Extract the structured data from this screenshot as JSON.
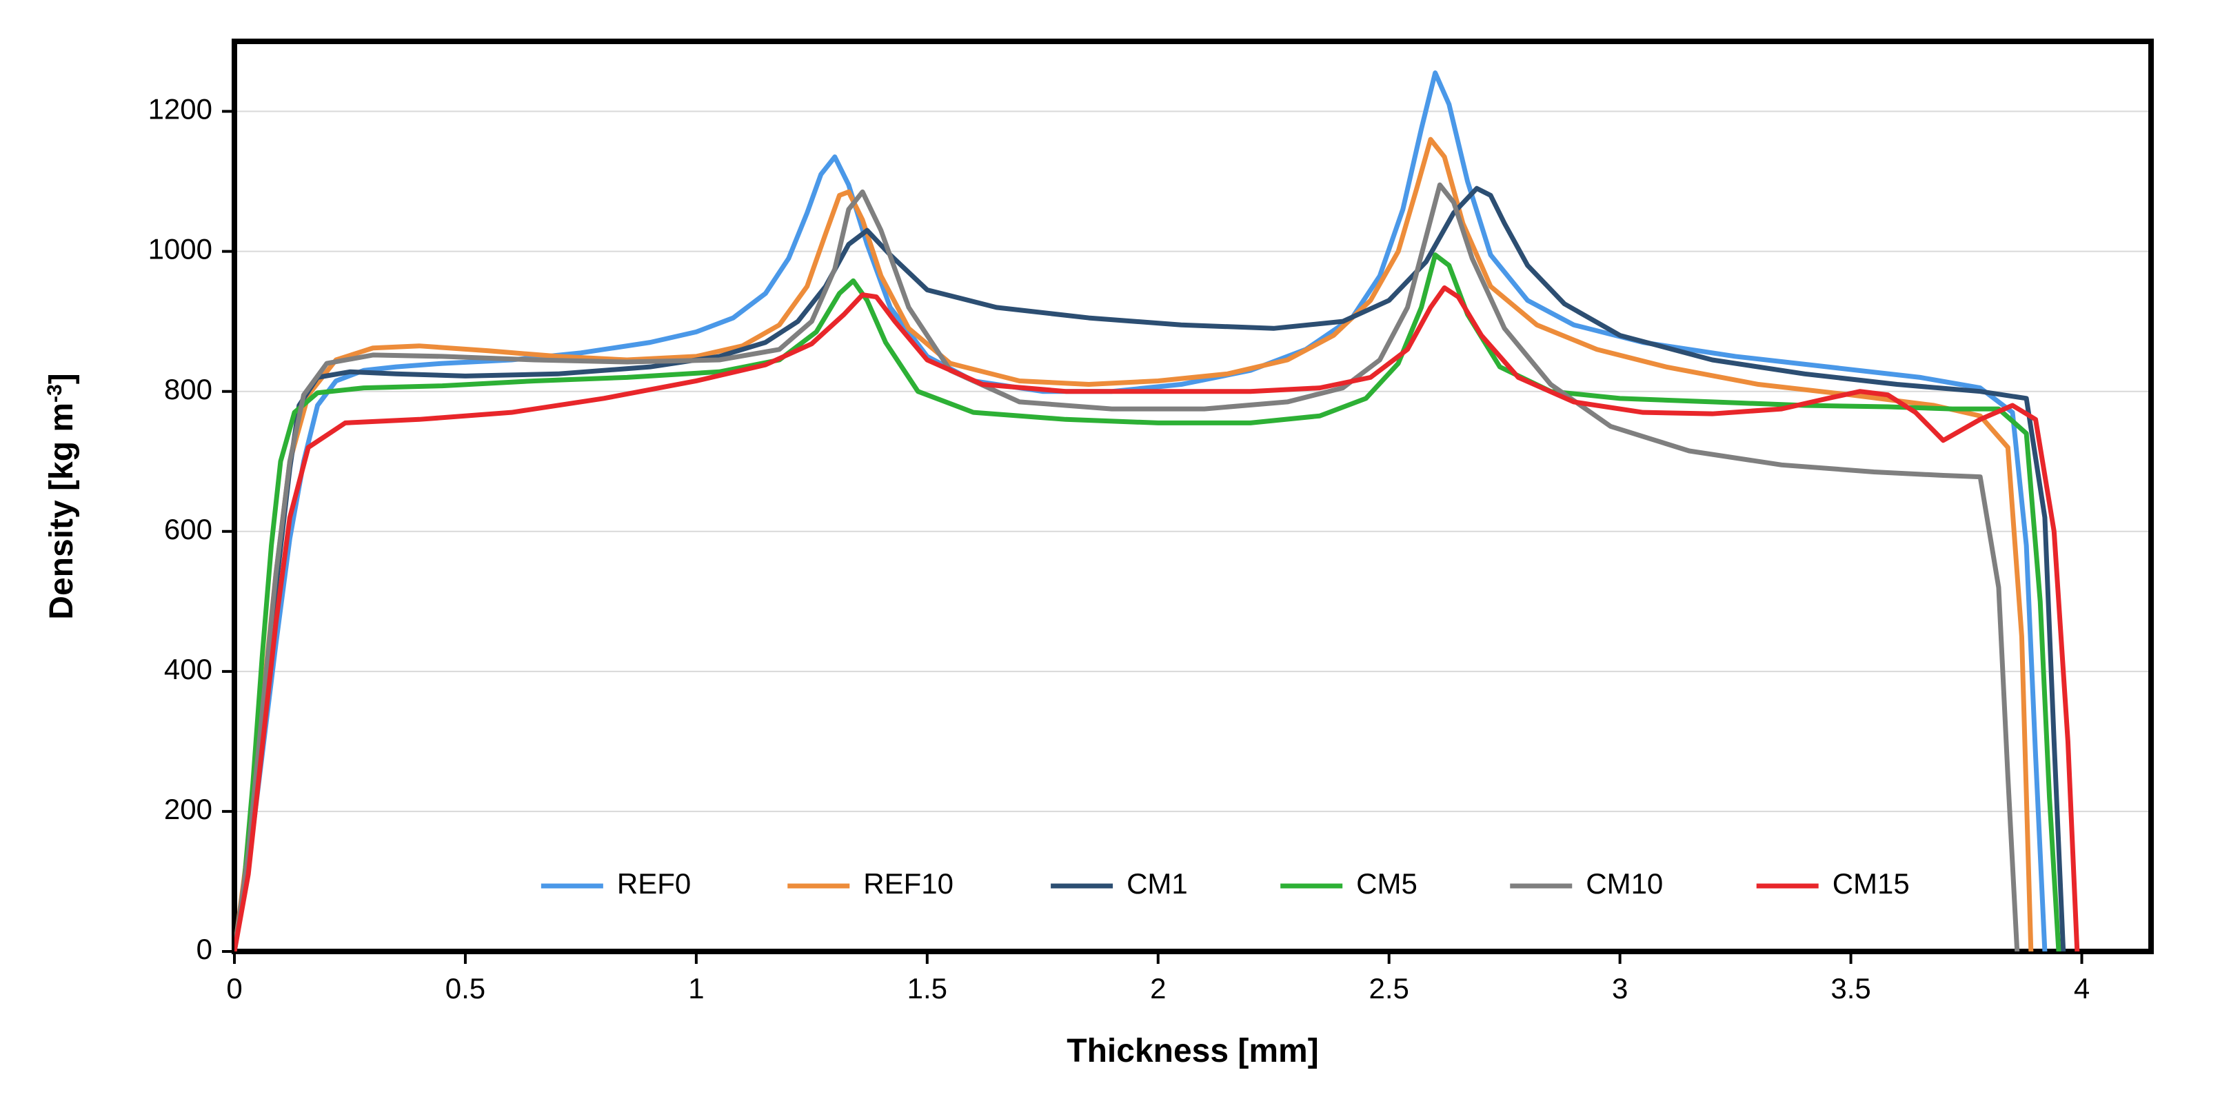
{
  "chart": {
    "type": "line",
    "background_color": "#ffffff",
    "plot_border_color": "#000000",
    "plot_border_width": 8,
    "gridline_color": "#d9d9d9",
    "gridline_width": 2,
    "axis_label_fontsize": 48,
    "tick_label_fontsize": 42,
    "legend_fontsize": 42,
    "line_width": 7,
    "x_axis": {
      "label": "Thickness [mm]",
      "min": 0,
      "max": 4.15,
      "tick_step": 0.5,
      "ticks": [
        0,
        0.5,
        1,
        1.5,
        2,
        2.5,
        3,
        3.5,
        4
      ]
    },
    "y_axis": {
      "label": "Density [kg m⁻³]",
      "min": 0,
      "max": 1300,
      "tick_step": 200,
      "ticks": [
        0,
        200,
        400,
        600,
        800,
        1000,
        1200
      ],
      "grid": true
    },
    "legend": {
      "position": "bottom-inside",
      "line_length": 90,
      "gap": 150
    },
    "series": [
      {
        "name": "REF0",
        "color": "#4a98e8",
        "x": [
          0,
          0.03,
          0.06,
          0.09,
          0.12,
          0.15,
          0.18,
          0.22,
          0.28,
          0.35,
          0.45,
          0.6,
          0.75,
          0.9,
          1.0,
          1.08,
          1.15,
          1.2,
          1.24,
          1.27,
          1.3,
          1.33,
          1.37,
          1.42,
          1.5,
          1.6,
          1.75,
          1.9,
          2.05,
          2.2,
          2.32,
          2.42,
          2.48,
          2.53,
          2.57,
          2.6,
          2.63,
          2.67,
          2.72,
          2.8,
          2.9,
          3.05,
          3.25,
          3.45,
          3.65,
          3.78,
          3.85,
          3.88,
          3.9,
          3.92
        ],
        "y": [
          0,
          120,
          280,
          440,
          590,
          700,
          780,
          815,
          830,
          835,
          840,
          845,
          855,
          870,
          885,
          905,
          940,
          990,
          1055,
          1110,
          1135,
          1095,
          1010,
          920,
          850,
          815,
          800,
          800,
          810,
          830,
          860,
          905,
          965,
          1060,
          1175,
          1255,
          1210,
          1100,
          995,
          930,
          895,
          870,
          850,
          835,
          820,
          805,
          770,
          580,
          280,
          0
        ]
      },
      {
        "name": "REF10",
        "color": "#ed8c3a",
        "x": [
          0,
          0.03,
          0.06,
          0.09,
          0.12,
          0.16,
          0.22,
          0.3,
          0.4,
          0.55,
          0.7,
          0.85,
          1.0,
          1.1,
          1.18,
          1.24,
          1.28,
          1.31,
          1.33,
          1.36,
          1.4,
          1.46,
          1.55,
          1.7,
          1.85,
          2.0,
          2.15,
          2.28,
          2.38,
          2.46,
          2.52,
          2.56,
          2.59,
          2.62,
          2.66,
          2.72,
          2.82,
          2.95,
          3.1,
          3.3,
          3.5,
          3.68,
          3.78,
          3.84,
          3.87,
          3.89
        ],
        "y": [
          0,
          150,
          350,
          540,
          700,
          795,
          845,
          862,
          865,
          858,
          850,
          845,
          850,
          865,
          895,
          950,
          1025,
          1080,
          1085,
          1045,
          965,
          890,
          840,
          815,
          810,
          815,
          825,
          845,
          880,
          930,
          1000,
          1090,
          1160,
          1135,
          1040,
          950,
          895,
          860,
          835,
          810,
          795,
          780,
          765,
          720,
          450,
          0
        ]
      },
      {
        "name": "CM1",
        "color": "#2c4e72",
        "x": [
          0,
          0.03,
          0.06,
          0.09,
          0.12,
          0.14,
          0.18,
          0.25,
          0.35,
          0.5,
          0.7,
          0.9,
          1.05,
          1.15,
          1.22,
          1.28,
          1.33,
          1.37,
          1.42,
          1.5,
          1.65,
          1.85,
          2.05,
          2.25,
          2.4,
          2.5,
          2.58,
          2.64,
          2.69,
          2.72,
          2.75,
          2.8,
          2.88,
          3.0,
          3.2,
          3.4,
          3.6,
          3.78,
          3.88,
          3.92,
          3.94,
          3.96
        ],
        "y": [
          0,
          130,
          320,
          520,
          690,
          780,
          820,
          828,
          825,
          822,
          825,
          835,
          850,
          870,
          900,
          950,
          1010,
          1030,
          995,
          945,
          920,
          905,
          895,
          890,
          900,
          930,
          985,
          1055,
          1090,
          1080,
          1040,
          980,
          925,
          880,
          845,
          825,
          810,
          800,
          790,
          620,
          300,
          0
        ]
      },
      {
        "name": "CM5",
        "color": "#2db035",
        "x": [
          0,
          0.02,
          0.04,
          0.06,
          0.08,
          0.1,
          0.13,
          0.18,
          0.28,
          0.45,
          0.65,
          0.85,
          1.05,
          1.18,
          1.26,
          1.31,
          1.34,
          1.37,
          1.41,
          1.48,
          1.6,
          1.8,
          2.0,
          2.2,
          2.35,
          2.45,
          2.52,
          2.57,
          2.6,
          2.63,
          2.67,
          2.74,
          2.85,
          3.0,
          3.2,
          3.4,
          3.58,
          3.72,
          3.82,
          3.88,
          3.91,
          3.93,
          3.95
        ],
        "y": [
          0,
          90,
          240,
          420,
          580,
          700,
          770,
          798,
          805,
          808,
          815,
          820,
          828,
          845,
          885,
          940,
          958,
          930,
          870,
          800,
          770,
          760,
          755,
          755,
          765,
          790,
          840,
          920,
          995,
          980,
          910,
          835,
          800,
          790,
          785,
          780,
          778,
          775,
          775,
          740,
          500,
          220,
          0
        ]
      },
      {
        "name": "CM10",
        "color": "#7f7f7f",
        "x": [
          0,
          0.03,
          0.06,
          0.09,
          0.12,
          0.15,
          0.2,
          0.3,
          0.45,
          0.65,
          0.85,
          1.05,
          1.18,
          1.25,
          1.3,
          1.33,
          1.36,
          1.4,
          1.46,
          1.55,
          1.7,
          1.9,
          2.1,
          2.28,
          2.4,
          2.48,
          2.54,
          2.58,
          2.61,
          2.64,
          2.68,
          2.75,
          2.85,
          2.98,
          3.15,
          3.35,
          3.55,
          3.7,
          3.78,
          3.82,
          3.84,
          3.86
        ],
        "y": [
          0,
          140,
          340,
          540,
          700,
          795,
          840,
          852,
          850,
          845,
          842,
          845,
          860,
          900,
          975,
          1060,
          1085,
          1030,
          920,
          830,
          785,
          775,
          775,
          785,
          805,
          845,
          920,
          1020,
          1095,
          1070,
          990,
          890,
          810,
          750,
          715,
          695,
          685,
          680,
          678,
          520,
          250,
          0
        ]
      },
      {
        "name": "CM15",
        "color": "#e8262a",
        "x": [
          0,
          0.03,
          0.06,
          0.09,
          0.12,
          0.16,
          0.24,
          0.4,
          0.6,
          0.8,
          1.0,
          1.15,
          1.25,
          1.32,
          1.36,
          1.39,
          1.43,
          1.5,
          1.62,
          1.8,
          2.0,
          2.2,
          2.35,
          2.46,
          2.54,
          2.59,
          2.62,
          2.65,
          2.7,
          2.78,
          2.9,
          3.05,
          3.2,
          3.35,
          3.45,
          3.52,
          3.58,
          3.64,
          3.7,
          3.78,
          3.85,
          3.9,
          3.94,
          3.97,
          3.99
        ],
        "y": [
          0,
          110,
          290,
          470,
          620,
          720,
          755,
          760,
          770,
          790,
          815,
          838,
          868,
          910,
          938,
          935,
          900,
          845,
          810,
          800,
          800,
          800,
          805,
          820,
          860,
          920,
          948,
          935,
          880,
          820,
          785,
          770,
          768,
          775,
          790,
          800,
          795,
          770,
          730,
          760,
          780,
          760,
          600,
          300,
          0
        ]
      }
    ]
  }
}
